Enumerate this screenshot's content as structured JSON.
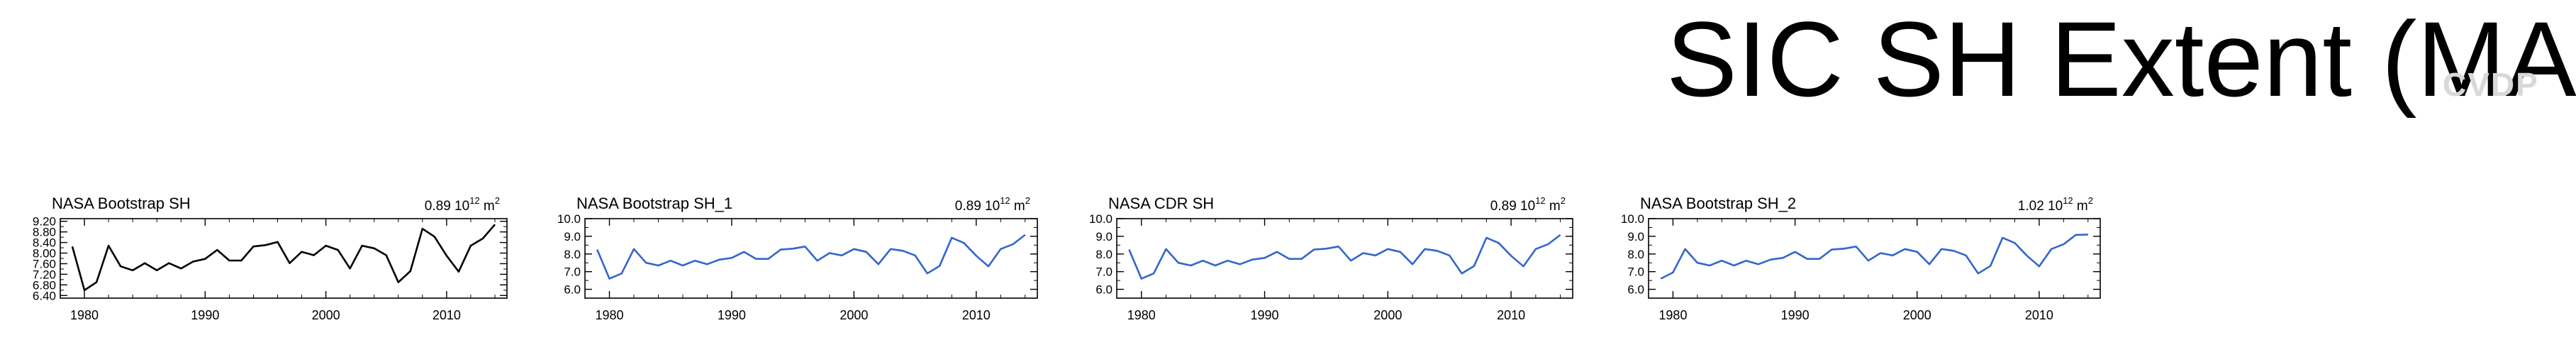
{
  "page": {
    "title": "SIC SH Extent (MAM)",
    "watermark": "CVDP"
  },
  "chart_data": [
    {
      "type": "line",
      "title": "NASA Bootstrap SH",
      "stat": "0.89",
      "stat_unit": "10",
      "stat_exp": "12",
      "stat_unit2": "m",
      "stat_unit2_exp": "2",
      "color": "#000000",
      "x": [
        1979,
        1980,
        1981,
        1982,
        1983,
        1984,
        1985,
        1986,
        1987,
        1988,
        1989,
        1990,
        1991,
        1992,
        1993,
        1994,
        1995,
        1996,
        1997,
        1998,
        1999,
        2000,
        2001,
        2002,
        2003,
        2004,
        2005,
        2006,
        2007,
        2008,
        2009,
        2010,
        2011,
        2012,
        2013,
        2014
      ],
      "values": [
        8.25,
        6.6,
        6.9,
        8.28,
        7.5,
        7.35,
        7.62,
        7.35,
        7.62,
        7.42,
        7.68,
        7.78,
        8.12,
        7.72,
        7.72,
        8.25,
        8.3,
        8.42,
        7.62,
        8.05,
        7.92,
        8.28,
        8.12,
        7.42,
        8.28,
        8.18,
        7.92,
        6.9,
        7.32,
        8.92,
        8.62,
        7.9,
        7.3,
        8.28,
        8.55,
        9.08
      ],
      "xlim": [
        1978,
        2015
      ],
      "ylim": [
        6.3,
        9.3
      ],
      "yticks": [
        6.4,
        6.8,
        7.2,
        7.6,
        8.0,
        8.4,
        8.8,
        9.2
      ],
      "yticklabels": [
        "6.40",
        "6.80",
        "7.20",
        "7.60",
        "8.00",
        "8.40",
        "8.80",
        "9.20"
      ],
      "xticks": [
        1980,
        1990,
        2000,
        2010
      ],
      "xticklabels": [
        "1980",
        "1990",
        "2000",
        "2010"
      ]
    },
    {
      "type": "line",
      "title": "NASA Bootstrap SH_1",
      "stat": "0.89",
      "stat_unit": "10",
      "stat_exp": "12",
      "stat_unit2": "m",
      "stat_unit2_exp": "2",
      "color": "#3366cc",
      "x": [
        1979,
        1980,
        1981,
        1982,
        1983,
        1984,
        1985,
        1986,
        1987,
        1988,
        1989,
        1990,
        1991,
        1992,
        1993,
        1994,
        1995,
        1996,
        1997,
        1998,
        1999,
        2000,
        2001,
        2002,
        2003,
        2004,
        2005,
        2006,
        2007,
        2008,
        2009,
        2010,
        2011,
        2012,
        2013,
        2014
      ],
      "values": [
        8.25,
        6.6,
        6.9,
        8.28,
        7.5,
        7.35,
        7.62,
        7.35,
        7.62,
        7.42,
        7.68,
        7.78,
        8.12,
        7.72,
        7.72,
        8.25,
        8.3,
        8.42,
        7.62,
        8.05,
        7.92,
        8.28,
        8.12,
        7.42,
        8.28,
        8.18,
        7.92,
        6.9,
        7.32,
        8.92,
        8.62,
        7.9,
        7.3,
        8.28,
        8.55,
        9.08
      ],
      "xlim": [
        1978,
        2015
      ],
      "ylim": [
        5.5,
        10.0
      ],
      "yticks": [
        6.0,
        7.0,
        8.0,
        9.0,
        10.0
      ],
      "yticklabels": [
        "6.0",
        "7.0",
        "8.0",
        "9.0",
        "10.0"
      ],
      "xticks": [
        1980,
        1990,
        2000,
        2010
      ],
      "xticklabels": [
        "1980",
        "1990",
        "2000",
        "2010"
      ]
    },
    {
      "type": "line",
      "title": "NASA CDR SH",
      "stat": "0.89",
      "stat_unit": "10",
      "stat_exp": "12",
      "stat_unit2": "m",
      "stat_unit2_exp": "2",
      "color": "#3366cc",
      "x": [
        1979,
        1980,
        1981,
        1982,
        1983,
        1984,
        1985,
        1986,
        1987,
        1988,
        1989,
        1990,
        1991,
        1992,
        1993,
        1994,
        1995,
        1996,
        1997,
        1998,
        1999,
        2000,
        2001,
        2002,
        2003,
        2004,
        2005,
        2006,
        2007,
        2008,
        2009,
        2010,
        2011,
        2012,
        2013,
        2014
      ],
      "values": [
        8.25,
        6.6,
        6.9,
        8.28,
        7.5,
        7.35,
        7.62,
        7.35,
        7.62,
        7.42,
        7.68,
        7.78,
        8.12,
        7.72,
        7.72,
        8.25,
        8.3,
        8.42,
        7.62,
        8.05,
        7.92,
        8.28,
        8.12,
        7.42,
        8.28,
        8.18,
        7.92,
        6.9,
        7.32,
        8.92,
        8.62,
        7.9,
        7.3,
        8.28,
        8.55,
        9.08
      ],
      "xlim": [
        1978,
        2015
      ],
      "ylim": [
        5.5,
        10.0
      ],
      "yticks": [
        6.0,
        7.0,
        8.0,
        9.0,
        10.0
      ],
      "yticklabels": [
        "6.0",
        "7.0",
        "8.0",
        "9.0",
        "10.0"
      ],
      "xticks": [
        1980,
        1990,
        2000,
        2010
      ],
      "xticklabels": [
        "1980",
        "1990",
        "2000",
        "2010"
      ]
    },
    {
      "type": "line",
      "title": "NASA Bootstrap SH_2",
      "stat": "1.02",
      "stat_unit": "10",
      "stat_exp": "12",
      "stat_unit2": "m",
      "stat_unit2_exp": "2",
      "color": "#3366cc",
      "x": [
        1979,
        1980,
        1981,
        1982,
        1983,
        1984,
        1985,
        1986,
        1987,
        1988,
        1989,
        1990,
        1991,
        1992,
        1993,
        1994,
        1995,
        1996,
        1997,
        1998,
        1999,
        2000,
        2001,
        2002,
        2003,
        2004,
        2005,
        2006,
        2007,
        2008,
        2009,
        2010,
        2011,
        2012,
        2013,
        2014
      ],
      "values": [
        6.6,
        6.95,
        8.28,
        7.5,
        7.35,
        7.62,
        7.35,
        7.62,
        7.42,
        7.68,
        7.78,
        8.12,
        7.72,
        7.72,
        8.25,
        8.3,
        8.42,
        7.62,
        8.05,
        7.92,
        8.28,
        8.12,
        7.42,
        8.28,
        8.18,
        7.92,
        6.9,
        7.32,
        8.92,
        8.62,
        7.9,
        7.3,
        8.28,
        8.55,
        9.08,
        9.1
      ],
      "xlim": [
        1978,
        2015
      ],
      "ylim": [
        5.5,
        10.0
      ],
      "yticks": [
        6.0,
        7.0,
        8.0,
        9.0,
        10.0
      ],
      "yticklabels": [
        "6.0",
        "7.0",
        "8.0",
        "9.0",
        "10.0"
      ],
      "xticks": [
        1980,
        1990,
        2000,
        2010
      ],
      "xticklabels": [
        "1980",
        "1990",
        "2000",
        "2010"
      ]
    }
  ]
}
